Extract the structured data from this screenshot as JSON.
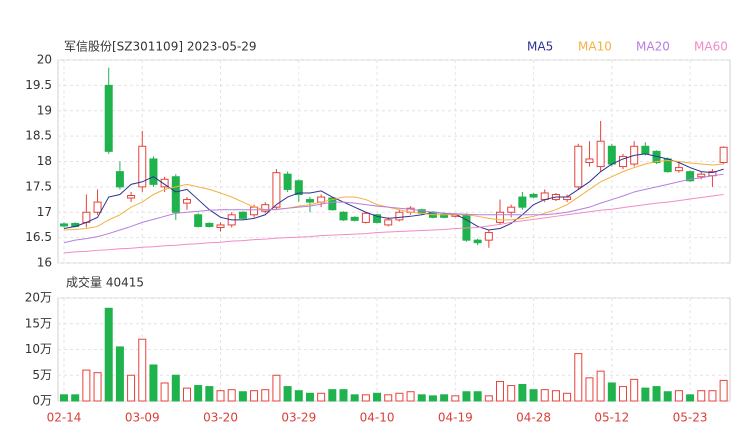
{
  "chart_data": [
    {
      "type": "candlestick",
      "title": "军信股份[SZ301109] 2023-05-29",
      "up_color": "#e8413a",
      "down_color": "#1fb24d",
      "ylim": [
        16,
        20
      ],
      "yticks": [
        16,
        16.5,
        17,
        17.5,
        18,
        18.5,
        19,
        19.5,
        20
      ],
      "grid": true,
      "open": [
        16.77,
        16.78,
        16.8,
        17.0,
        19.5,
        17.8,
        17.28,
        17.5,
        18.05,
        17.5,
        17.7,
        17.18,
        16.95,
        16.78,
        16.7,
        16.75,
        17.0,
        16.95,
        17.02,
        17.1,
        17.75,
        17.62,
        17.25,
        17.2,
        17.28,
        17.0,
        16.9,
        16.8,
        16.95,
        16.75,
        16.85,
        17.0,
        17.05,
        17.0,
        16.96,
        16.92,
        16.95,
        16.45,
        16.45,
        16.8,
        17.0,
        17.3,
        17.35,
        17.25,
        17.25,
        17.25,
        17.5,
        17.98,
        17.9,
        18.3,
        17.9,
        17.95,
        18.3,
        18.2,
        18.05,
        17.82,
        17.8,
        17.7,
        17.72,
        17.98
      ],
      "high": [
        16.8,
        16.8,
        17.35,
        17.45,
        19.85,
        18.0,
        17.4,
        18.6,
        18.1,
        17.7,
        17.75,
        17.3,
        16.98,
        16.8,
        16.8,
        17.0,
        17.02,
        17.15,
        17.2,
        17.85,
        17.8,
        17.65,
        17.3,
        17.35,
        17.3,
        17.02,
        16.92,
        17.0,
        16.97,
        16.9,
        17.05,
        17.12,
        17.07,
        17.02,
        16.98,
        16.97,
        16.98,
        16.48,
        16.65,
        17.25,
        17.15,
        17.4,
        17.38,
        17.45,
        17.38,
        17.35,
        18.35,
        18.4,
        18.8,
        18.35,
        18.15,
        18.4,
        18.38,
        18.22,
        18.08,
        18.0,
        17.82,
        17.8,
        17.85,
        18.3
      ],
      "low": [
        16.7,
        16.7,
        16.7,
        16.95,
        18.15,
        17.45,
        17.2,
        17.4,
        17.5,
        17.4,
        16.85,
        17.05,
        16.7,
        16.7,
        16.62,
        16.7,
        16.86,
        16.9,
        16.98,
        17.05,
        17.4,
        17.2,
        17.0,
        17.1,
        17.03,
        16.83,
        16.82,
        16.78,
        16.78,
        16.72,
        16.82,
        16.95,
        16.96,
        16.88,
        16.88,
        16.9,
        16.42,
        16.35,
        16.3,
        16.75,
        16.9,
        17.05,
        17.28,
        17.2,
        17.22,
        17.2,
        17.45,
        17.9,
        17.8,
        17.9,
        17.85,
        17.9,
        18.12,
        17.95,
        17.78,
        17.78,
        17.6,
        17.65,
        17.5,
        17.95
      ],
      "close": [
        16.73,
        16.72,
        17.0,
        17.2,
        18.2,
        17.5,
        17.33,
        18.3,
        17.55,
        17.65,
        17.0,
        17.25,
        16.72,
        16.72,
        16.75,
        16.95,
        16.88,
        17.1,
        17.15,
        17.78,
        17.45,
        17.35,
        17.2,
        17.3,
        17.05,
        16.85,
        16.84,
        16.98,
        16.8,
        16.85,
        17.0,
        17.08,
        16.98,
        16.9,
        16.9,
        16.95,
        16.45,
        16.4,
        16.6,
        17.0,
        17.1,
        17.1,
        17.3,
        17.38,
        17.35,
        17.3,
        18.3,
        18.05,
        18.4,
        17.95,
        18.1,
        18.3,
        18.15,
        17.98,
        17.8,
        17.88,
        17.62,
        17.75,
        17.8,
        18.28
      ],
      "series": [
        {
          "name": "MA5",
          "color": "#2e3192",
          "values": [
            16.68,
            16.72,
            16.8,
            16.9,
            17.3,
            17.35,
            17.55,
            17.6,
            17.7,
            17.55,
            17.4,
            17.45,
            17.25,
            17.05,
            16.9,
            16.85,
            16.85,
            16.88,
            16.95,
            17.15,
            17.3,
            17.38,
            17.38,
            17.42,
            17.3,
            17.2,
            17.1,
            17.0,
            16.92,
            16.88,
            16.9,
            16.92,
            16.95,
            17.0,
            16.98,
            16.96,
            16.85,
            16.72,
            16.65,
            16.68,
            16.78,
            16.95,
            17.15,
            17.25,
            17.3,
            17.3,
            17.45,
            17.6,
            17.8,
            17.95,
            18.05,
            18.12,
            18.15,
            18.1,
            18.05,
            17.98,
            17.88,
            17.8,
            17.78,
            17.85
          ]
        },
        {
          "name": "MA10",
          "color": "#f5b041",
          "values": [
            16.65,
            16.66,
            16.68,
            16.72,
            16.85,
            16.95,
            17.1,
            17.2,
            17.35,
            17.45,
            17.5,
            17.55,
            17.5,
            17.45,
            17.38,
            17.3,
            17.2,
            17.1,
            17.05,
            17.05,
            17.08,
            17.12,
            17.15,
            17.2,
            17.25,
            17.3,
            17.3,
            17.25,
            17.15,
            17.1,
            17.05,
            17.0,
            16.98,
            16.95,
            16.95,
            16.95,
            16.95,
            16.92,
            16.88,
            16.85,
            16.85,
            16.88,
            16.92,
            16.98,
            17.05,
            17.15,
            17.3,
            17.45,
            17.6,
            17.7,
            17.8,
            17.88,
            17.95,
            18.0,
            18.02,
            18.0,
            17.97,
            17.95,
            17.93,
            17.95
          ]
        },
        {
          "name": "MA20",
          "color": "#b57fe0",
          "values": [
            16.4,
            16.45,
            16.48,
            16.52,
            16.58,
            16.65,
            16.72,
            16.8,
            16.86,
            16.92,
            16.98,
            17.0,
            17.02,
            17.04,
            17.05,
            17.05,
            17.05,
            17.05,
            17.05,
            17.06,
            17.08,
            17.1,
            17.12,
            17.16,
            17.2,
            17.2,
            17.18,
            17.15,
            17.12,
            17.1,
            17.08,
            17.06,
            17.03,
            17.0,
            16.98,
            16.97,
            16.96,
            16.95,
            16.95,
            16.95,
            16.95,
            16.95,
            16.95,
            16.95,
            16.97,
            17.0,
            17.05,
            17.1,
            17.18,
            17.25,
            17.32,
            17.4,
            17.45,
            17.5,
            17.55,
            17.6,
            17.65,
            17.68,
            17.72,
            17.75
          ]
        },
        {
          "name": "MA60",
          "color": "#f28cc4",
          "values": [
            16.2,
            16.22,
            16.23,
            16.25,
            16.26,
            16.28,
            16.29,
            16.31,
            16.32,
            16.34,
            16.35,
            16.37,
            16.38,
            16.4,
            16.41,
            16.43,
            16.44,
            16.46,
            16.47,
            16.49,
            16.5,
            16.51,
            16.52,
            16.54,
            16.55,
            16.56,
            16.57,
            16.58,
            16.6,
            16.61,
            16.62,
            16.63,
            16.64,
            16.65,
            16.66,
            16.68,
            16.69,
            16.7,
            16.73,
            16.76,
            16.8,
            16.83,
            16.86,
            16.89,
            16.92,
            16.95,
            16.98,
            17.01,
            17.04,
            17.06,
            17.09,
            17.12,
            17.15,
            17.18,
            17.2,
            17.23,
            17.26,
            17.29,
            17.32,
            17.35
          ]
        }
      ]
    },
    {
      "type": "bar",
      "title": "成交量 40415",
      "categories": [
        "02-14",
        null,
        null,
        null,
        null,
        null,
        null,
        "03-09",
        null,
        null,
        null,
        null,
        null,
        null,
        "03-20",
        null,
        null,
        null,
        null,
        null,
        null,
        "03-29",
        null,
        null,
        null,
        null,
        null,
        null,
        "04-10",
        null,
        null,
        null,
        null,
        null,
        null,
        "04-19",
        null,
        null,
        null,
        null,
        null,
        null,
        "04-28",
        null,
        null,
        null,
        null,
        null,
        null,
        "05-12",
        null,
        null,
        null,
        null,
        null,
        null,
        "05-23",
        null,
        null,
        null
      ],
      "values": [
        1.2,
        1.2,
        6,
        5.5,
        18,
        10.5,
        5,
        12,
        7,
        3.5,
        5,
        2.5,
        3,
        2.8,
        2,
        2.2,
        1.8,
        2,
        2.2,
        5,
        2.8,
        2,
        1.5,
        1.5,
        2.2,
        2.2,
        1.2,
        1.2,
        1.5,
        1.2,
        1.5,
        1.8,
        1.2,
        1,
        1.2,
        1,
        1.8,
        1.8,
        1,
        3.8,
        3,
        3.2,
        2.2,
        2.2,
        2,
        1.5,
        9.2,
        4.5,
        5.8,
        3.5,
        2.8,
        4.2,
        2.5,
        2.8,
        1.8,
        2,
        1.2,
        2,
        2,
        4
      ],
      "ylim": [
        0,
        20
      ],
      "yticks": [
        {
          "value": 0,
          "label": "0万"
        },
        {
          "value": 5,
          "label": "5万"
        },
        {
          "value": 10,
          "label": "10万"
        },
        {
          "value": 15,
          "label": "15万"
        },
        {
          "value": 20,
          "label": "20万"
        }
      ],
      "grid": true
    }
  ]
}
